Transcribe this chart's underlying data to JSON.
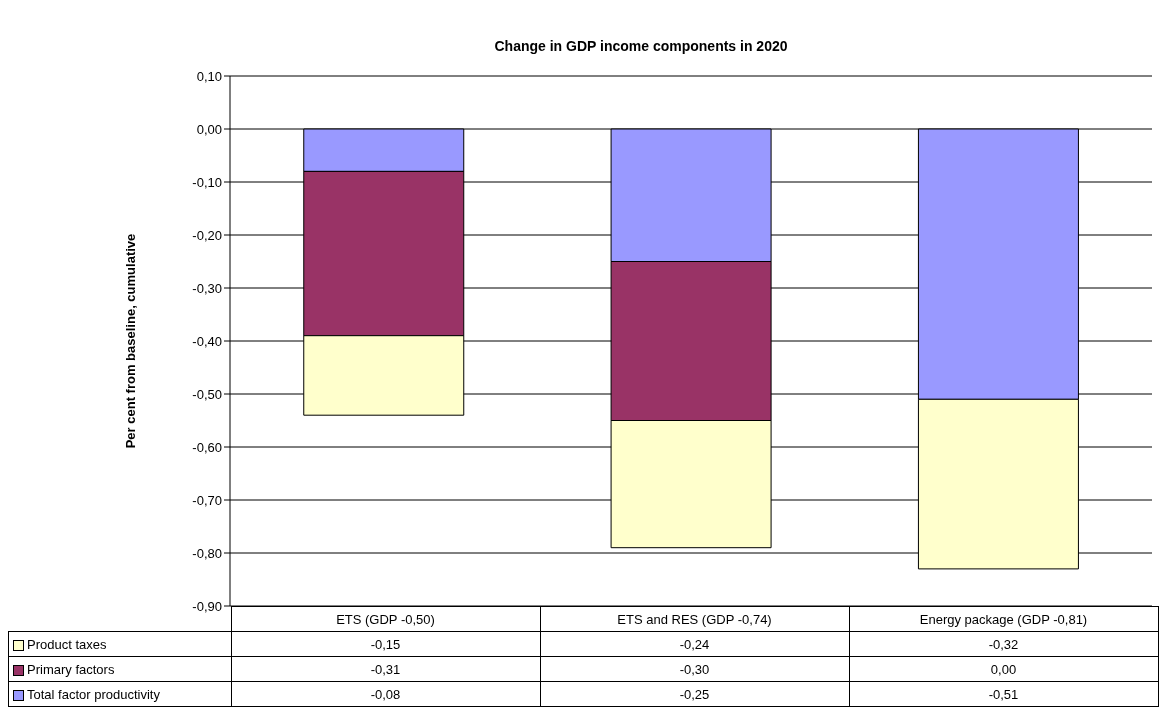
{
  "chart_data": {
    "type": "bar",
    "title": "Change in GDP income components in 2020",
    "ylabel": "Per cent from baseline, cumulative",
    "categories": [
      "ETS (GDP -0,50)",
      "ETS and RES (GDP -0,74)",
      "Energy package (GDP -0,81)"
    ],
    "stacked": true,
    "series": [
      {
        "name": "Total factor productivity",
        "color": "#9999ff",
        "values": [
          -0.08,
          -0.25,
          -0.51
        ],
        "value_labels": [
          "-0,08",
          "-0,25",
          "-0,51"
        ]
      },
      {
        "name": "Primary factors",
        "color": "#993366",
        "values": [
          -0.31,
          -0.3,
          0.0
        ],
        "value_labels": [
          "-0,31",
          "-0,30",
          "0,00"
        ]
      },
      {
        "name": "Product taxes",
        "color": "#ffffcc",
        "values": [
          -0.15,
          -0.24,
          -0.32
        ],
        "value_labels": [
          "-0,15",
          "-0,24",
          "-0,32"
        ]
      }
    ],
    "ylim": [
      -0.9,
      0.1
    ],
    "yticks": [
      {
        "value": 0.1,
        "label": "0,10"
      },
      {
        "value": 0,
        "label": "0,00"
      },
      {
        "value": -0.1,
        "label": "-0,10"
      },
      {
        "value": -0.2,
        "label": "-0,20"
      },
      {
        "value": -0.3,
        "label": "-0,30"
      },
      {
        "value": -0.4,
        "label": "-0,40"
      },
      {
        "value": -0.5,
        "label": "-0,50"
      },
      {
        "value": -0.6,
        "label": "-0,60"
      },
      {
        "value": -0.7,
        "label": "-0,70"
      },
      {
        "value": -0.8,
        "label": "-0,80"
      },
      {
        "value": -0.9,
        "label": "-0,90"
      }
    ],
    "grid": "y",
    "legend": "bottom left"
  }
}
